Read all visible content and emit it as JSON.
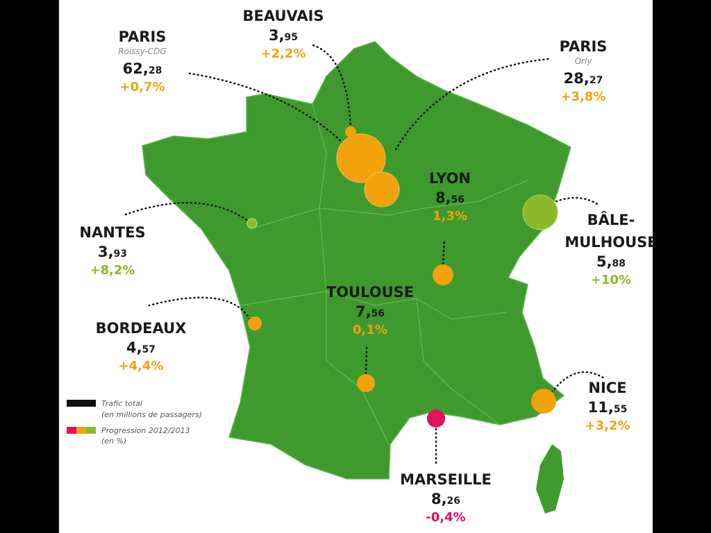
{
  "airports": [
    {
      "name_lines": [
        "PARIS"
      ],
      "subname": "Roissy-CDG",
      "traffic_whole": "62,",
      "traffic_decimal": "28",
      "progress": "+0,7%",
      "color": "#f2a20c"
    },
    {
      "name_lines": [
        "BEAUVAIS"
      ],
      "traffic_whole": "3,",
      "traffic_decimal": "95",
      "progress": "+2,2%",
      "color": "#f2a20c"
    },
    {
      "name_lines": [
        "PARIS"
      ],
      "subname": "Orly",
      "traffic_whole": "28,",
      "traffic_decimal": "27",
      "progress": "+3,8%",
      "color": "#f2a20c"
    },
    {
      "name_lines": [
        "LYON"
      ],
      "traffic_whole": "8,",
      "traffic_decimal": "56",
      "progress": "1,3%",
      "color": "#f2a20c"
    },
    {
      "name_lines": [
        "BÂLE-",
        "MULHOUSE"
      ],
      "traffic_whole": "5,",
      "traffic_decimal": "88",
      "progress": "+10%",
      "color": "#8cb82b"
    },
    {
      "name_lines": [
        "NANTES"
      ],
      "traffic_whole": "3,",
      "traffic_decimal": "93",
      "progress": "+8,2%",
      "color": "#8cb82b"
    },
    {
      "name_lines": [
        "TOULOUSE"
      ],
      "traffic_whole": "7,",
      "traffic_decimal": "56",
      "progress": "0,1%",
      "color": "#f2a20c"
    },
    {
      "name_lines": [
        "BORDEAUX"
      ],
      "traffic_whole": "4,",
      "traffic_decimal": "57",
      "progress": "+4,4%",
      "color": "#f2a20c"
    },
    {
      "name_lines": [
        "NICE"
      ],
      "traffic_whole": "11,",
      "traffic_decimal": "55",
      "progress": "+3,2%",
      "color": "#f2a20c"
    },
    {
      "name_lines": [
        "MARSEILLE"
      ],
      "traffic_whole": "8,",
      "traffic_decimal": "26",
      "progress": "-0,4%",
      "color": "#e0115f"
    }
  ],
  "legend": {
    "traffic": [
      "Trafic total",
      "(en millions de passagers)"
    ],
    "progress": [
      "Progression 2012/2013",
      "(en %)"
    ]
  }
}
